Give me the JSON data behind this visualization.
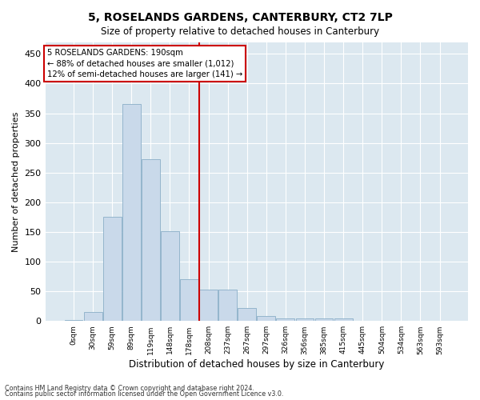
{
  "title": "5, ROSELANDS GARDENS, CANTERBURY, CT2 7LP",
  "subtitle": "Size of property relative to detached houses in Canterbury",
  "xlabel": "Distribution of detached houses by size in Canterbury",
  "ylabel": "Number of detached properties",
  "bar_color": "#c9d9ea",
  "bar_edge_color": "#8aaec8",
  "background_color": "#dce8f0",
  "fig_background_color": "#ffffff",
  "grid_color": "#ffffff",
  "vline_color": "#cc0000",
  "vline_x": 6.5,
  "annotation_text": "5 ROSELANDS GARDENS: 190sqm\n← 88% of detached houses are smaller (1,012)\n12% of semi-detached houses are larger (141) →",
  "annotation_box_color": "#ffffff",
  "annotation_box_edge": "#cc0000",
  "footnote1": "Contains HM Land Registry data © Crown copyright and database right 2024.",
  "footnote2": "Contains public sector information licensed under the Open Government Licence v3.0.",
  "tick_labels": [
    "0sqm",
    "30sqm",
    "59sqm",
    "89sqm",
    "119sqm",
    "148sqm",
    "178sqm",
    "208sqm",
    "237sqm",
    "267sqm",
    "297sqm",
    "326sqm",
    "356sqm",
    "385sqm",
    "415sqm",
    "445sqm",
    "504sqm",
    "534sqm",
    "563sqm",
    "593sqm"
  ],
  "values": [
    2,
    15,
    175,
    365,
    273,
    152,
    70,
    53,
    53,
    22,
    8,
    4,
    4,
    5,
    5,
    0,
    0,
    1,
    0,
    1
  ],
  "ylim": [
    0,
    470
  ],
  "yticks": [
    0,
    50,
    100,
    150,
    200,
    250,
    300,
    350,
    400,
    450
  ],
  "figsize": [
    6.0,
    5.0
  ],
  "dpi": 100
}
